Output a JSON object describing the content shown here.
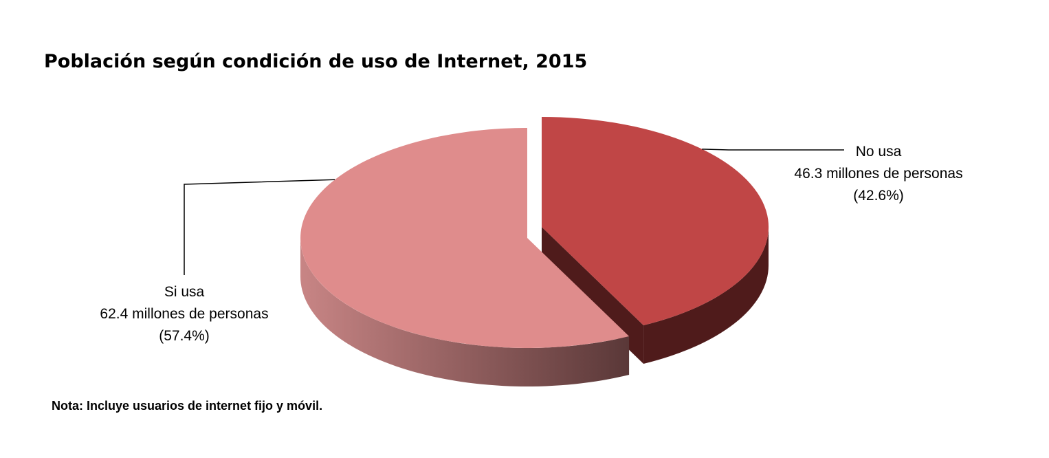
{
  "title": "Población según condición de uso de Internet, 2015",
  "note": "Nota: Incluye usuarios de internet fijo y móvil.",
  "colors": {
    "si_usa_top": "#df8c8c",
    "si_usa_side_light": "#c88585",
    "si_usa_side_dark": "#5a3838",
    "no_usa_top": "#c04646",
    "no_usa_side": "#4f1b1b",
    "leader_line": "#000000"
  },
  "chart_data": {
    "type": "pie",
    "style": "3d-exploded",
    "title": "Población según condición de uso de Internet, 2015",
    "slices": [
      {
        "name": "Si usa",
        "value": 62.4,
        "unit": "millones de personas",
        "percent": 57.4,
        "label_lines": [
          "Si usa",
          "62.4 millones de personas",
          "(57.4%)"
        ]
      },
      {
        "name": "No usa",
        "value": 46.3,
        "unit": "millones de personas",
        "percent": 42.6,
        "label_lines": [
          "No usa",
          "46.3 millones de personas",
          "(42.6%)"
        ]
      }
    ]
  }
}
